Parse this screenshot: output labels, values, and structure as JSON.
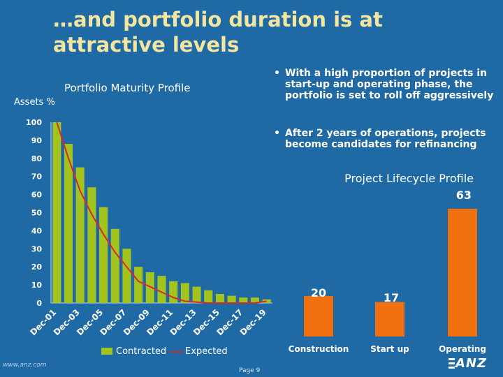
{
  "slide": {
    "title": "…and portfolio duration is at attractive levels",
    "footer_page": "Page 9",
    "logo_url": "www.anz.com",
    "logo_text": "ANZ"
  },
  "bullets": [
    {
      "marker": "•",
      "text": "With a high proportion of projects in start-up and operating phase, the portfolio is set to roll off aggressively"
    },
    {
      "marker": "•",
      "text": "After 2 years of operations, projects become candidates for refinancing"
    }
  ],
  "colors": {
    "background": "#1f6aa5",
    "title": "#f2e6a0",
    "contracted_bar": "#a3c41f",
    "expected_line": "#d8282a",
    "lifecycle_bar": "#f0700f"
  },
  "chart_data": [
    {
      "type": "bar",
      "title": "Portfolio Maturity Profile",
      "ylabel": "Assets %",
      "xlabel": "",
      "ylim": [
        0,
        100
      ],
      "yticks": [
        0,
        10,
        20,
        30,
        40,
        50,
        60,
        70,
        80,
        90,
        100
      ],
      "grid": false,
      "legend": "bottom",
      "x_tick_labels": [
        "Dec-01",
        "Dec-03",
        "Dec-05",
        "Dec-07",
        "Dec-09",
        "Dec-11",
        "Dec-13",
        "Dec-15",
        "Dec-17",
        "Dec-19"
      ],
      "categories": [
        "Dec-01",
        "Dec-02",
        "Dec-03",
        "Dec-04",
        "Dec-05",
        "Dec-06",
        "Dec-07",
        "Dec-08",
        "Dec-09",
        "Dec-10",
        "Dec-11",
        "Dec-12",
        "Dec-13",
        "Dec-14",
        "Dec-15",
        "Dec-16",
        "Dec-17",
        "Dec-18",
        "Dec-19"
      ],
      "series": [
        {
          "name": "Contracted",
          "kind": "bar",
          "values": [
            100,
            88,
            75,
            64,
            53,
            41,
            30,
            20,
            17,
            15,
            12,
            11,
            9,
            7,
            5,
            4,
            3,
            3,
            2
          ]
        },
        {
          "name": "Expected",
          "kind": "line",
          "values": [
            100,
            80,
            62,
            49,
            38,
            28,
            20,
            12,
            9,
            6,
            3,
            1,
            0.5,
            0,
            0,
            0,
            0,
            0,
            1
          ]
        }
      ]
    },
    {
      "type": "bar",
      "title": "Project Lifecycle Profile",
      "xlabel": "",
      "ylabel": "",
      "ylim": [
        0,
        63
      ],
      "grid": false,
      "categories": [
        "Construction",
        "Start up",
        "Operating"
      ],
      "values": [
        20,
        17,
        63
      ],
      "data_labels": [
        "20",
        "17",
        "63"
      ]
    }
  ]
}
